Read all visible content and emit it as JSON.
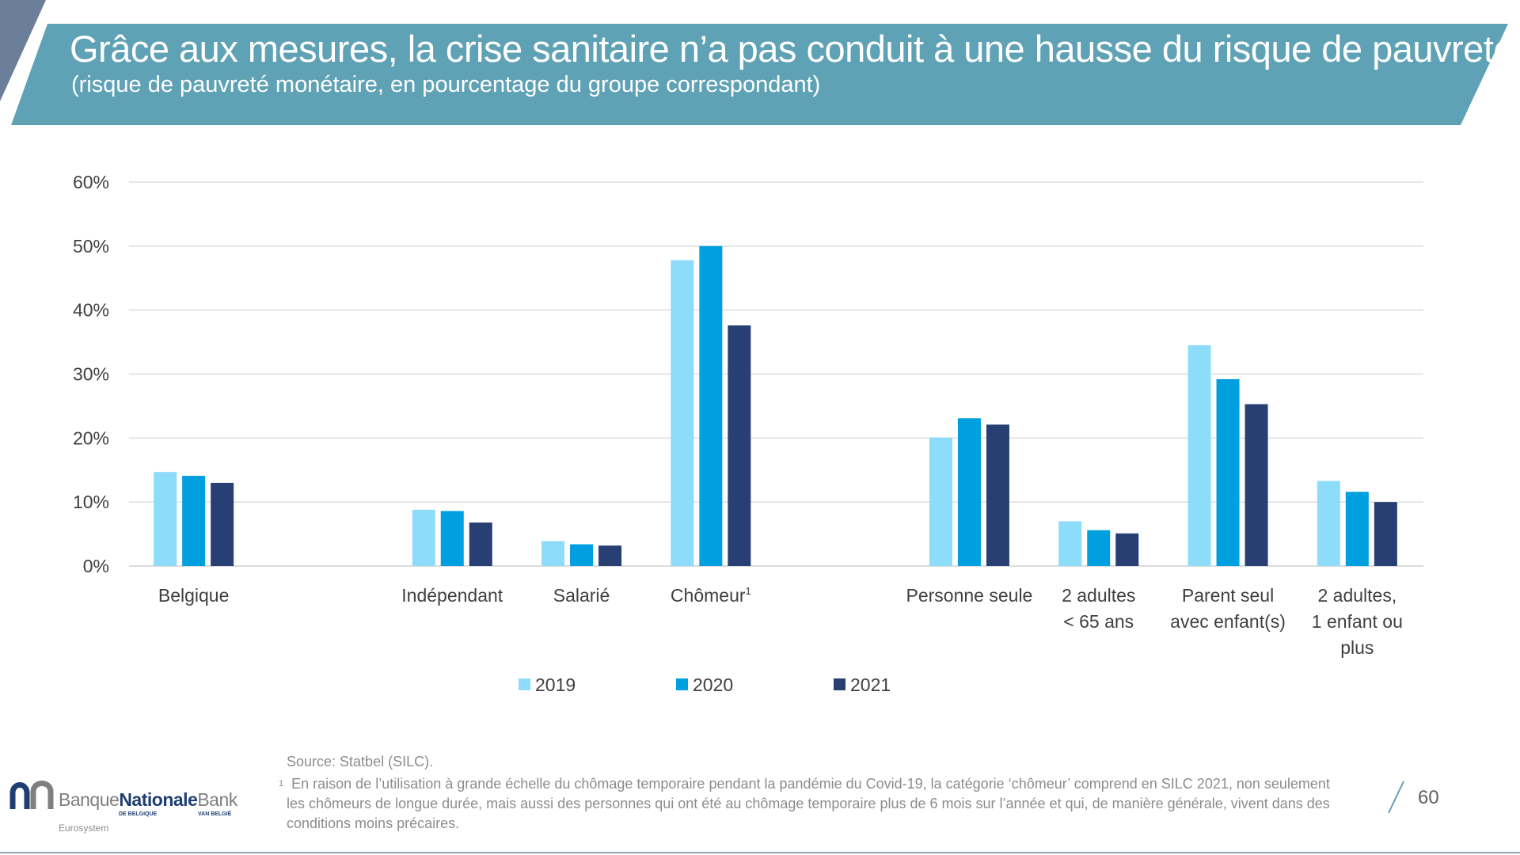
{
  "header": {
    "title": "Grâce aux mesures, la crise sanitaire n’a pas conduit à une hausse du risque de pauvreté …",
    "subtitle": "(risque de pauvreté monétaire, en pourcentage du groupe correspondant)",
    "banner_color": "#5fa2b5",
    "corner_color": "#6c7f9a"
  },
  "chart_data": {
    "type": "bar",
    "categories": [
      {
        "label": [
          "Belgique"
        ],
        "slot": 0
      },
      {
        "label": [
          "Indépendant"
        ],
        "slot": 2
      },
      {
        "label": [
          "Salarié"
        ],
        "slot": 3
      },
      {
        "label": [
          "Chômeur"
        ],
        "sup": "1",
        "slot": 4
      },
      {
        "label": [
          "Personne seule"
        ],
        "slot": 6
      },
      {
        "label": [
          "2 adultes",
          "< 65 ans"
        ],
        "slot": 7
      },
      {
        "label": [
          "Parent seul",
          "avec enfant(s)"
        ],
        "slot": 8
      },
      {
        "label": [
          "2 adultes,",
          "1 enfant ou",
          "plus"
        ],
        "slot": 9
      }
    ],
    "series": [
      {
        "name": "2019",
        "color": "#8ddcf9",
        "values": [
          14.7,
          8.8,
          3.9,
          47.8,
          20.1,
          7.0,
          34.5,
          13.3
        ]
      },
      {
        "name": "2020",
        "color": "#009fdf",
        "values": [
          14.1,
          8.6,
          3.4,
          50.0,
          23.1,
          5.6,
          29.2,
          11.6
        ]
      },
      {
        "name": "2021",
        "color": "#273f72",
        "values": [
          13.0,
          6.8,
          3.2,
          37.6,
          22.1,
          5.1,
          25.3,
          10.0
        ]
      }
    ],
    "ylim": [
      0,
      60
    ],
    "yticks": [
      0,
      10,
      20,
      30,
      40,
      50,
      60
    ],
    "ytick_suffix": "%",
    "grid": true,
    "legend_position": "bottom-center"
  },
  "footer": {
    "source": "Source: Statbel (SILC).",
    "note_marker": "1",
    "note": "En raison de l’utilisation à grande échelle du chômage temporaire pendant la pandémie du Covid-19, la catégorie ‘chômeur’ comprend en SILC 2021, non seulement les chômeurs de longue durée, mais aussi des personnes qui ont été au chômage temporaire plus de 6 mois sur l’année et qui, de manière générale, vivent dans des conditions moins précaires.",
    "page_number": "60"
  },
  "logo": {
    "word1": "Banque",
    "word2": "Nationale",
    "word3": "Bank",
    "sub1": "DE BELGIQUE",
    "sub2": "VAN BELGIË",
    "eurosystem": "Eurosystem"
  }
}
